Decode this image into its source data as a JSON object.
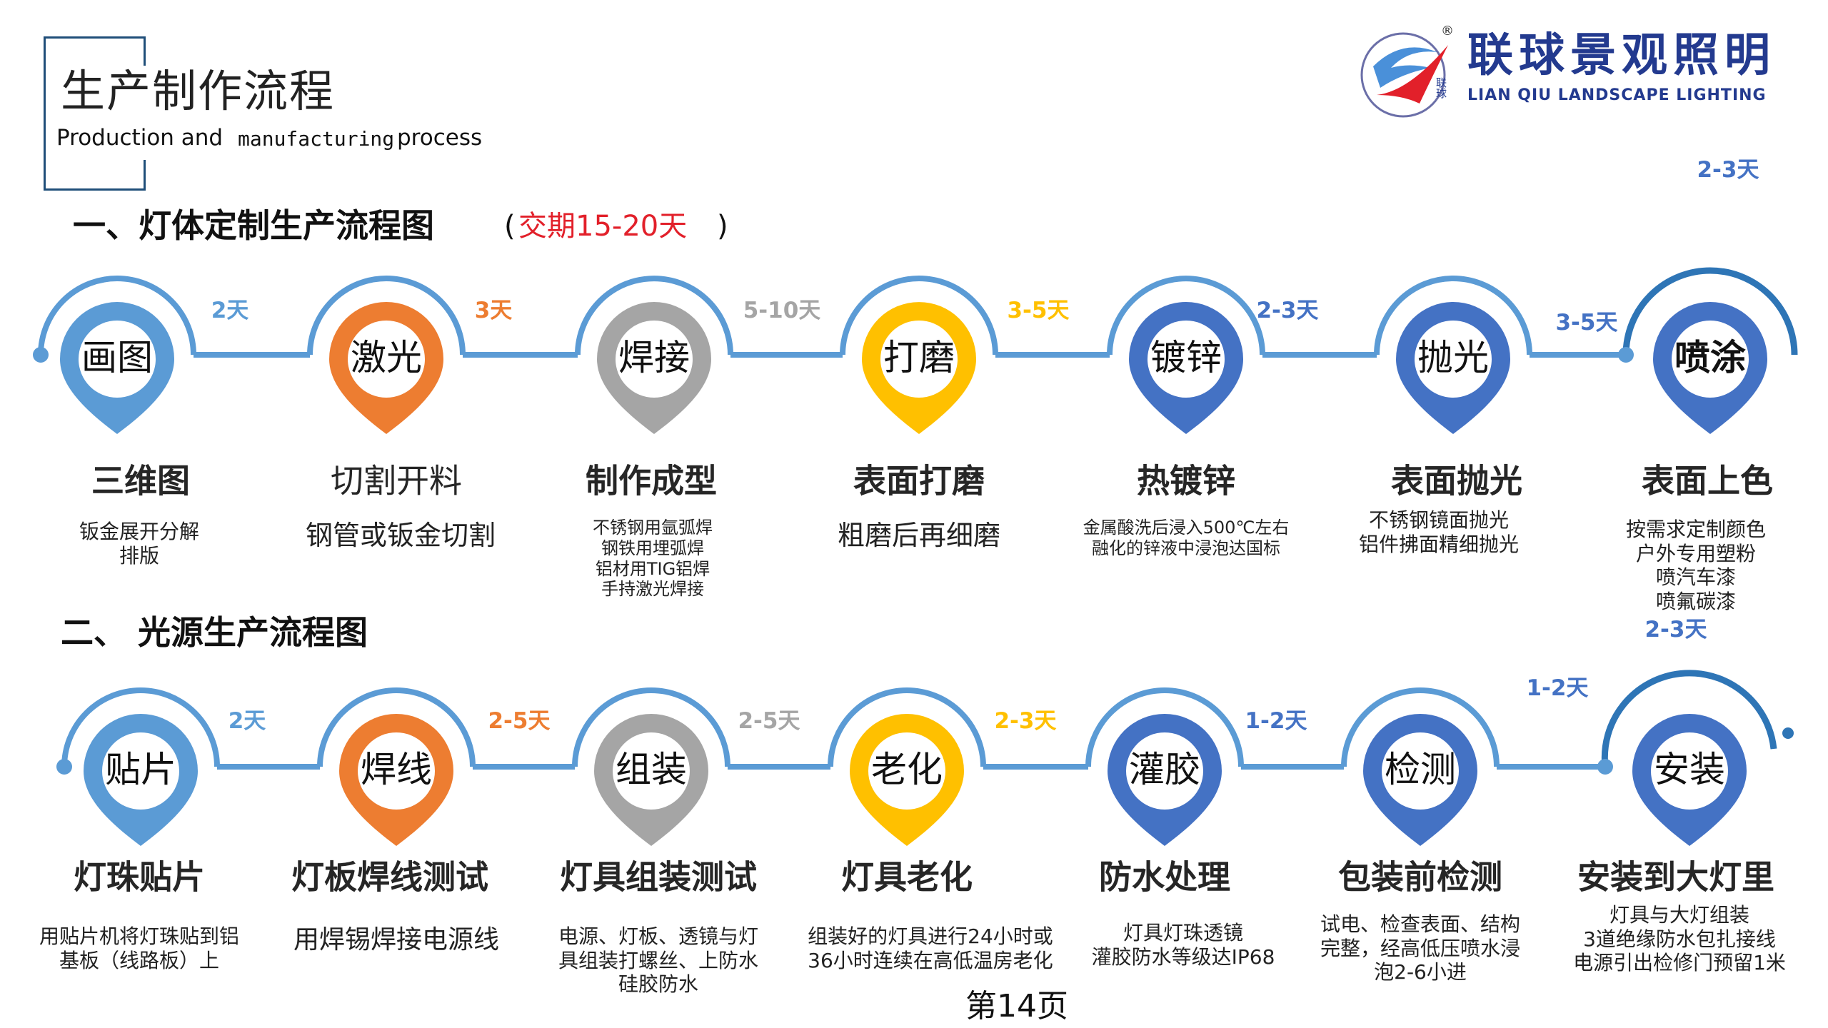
{
  "header": {
    "title": "生产制作流程",
    "subtitle_a": "Production and ",
    "subtitle_b": "manufacturing",
    "subtitle_c": " process"
  },
  "logo": {
    "name_cn": "联球景观照明",
    "name_en": "LIAN QIU LANDSCAPE LIGHTING",
    "small_cn": "联球",
    "registered": "®",
    "colors": {
      "blue": "#233a8f",
      "red": "#e2202a",
      "light_blue": "#4a90d9"
    }
  },
  "section1": {
    "title": "一、灯体定制生产流程图",
    "lead_open": "(",
    "lead_text": "交期15-20天",
    "lead_close": ")",
    "steps": [
      {
        "pin": "画图",
        "title": "三维图",
        "desc": [
          "钣金展开分解",
          "排版"
        ],
        "duration": "2天",
        "color": "#5b9bd5",
        "duration_color": "#5b9bd5"
      },
      {
        "pin": "激光",
        "title": "切割开料",
        "desc": [
          "钢管或钣金切割"
        ],
        "duration": "3天",
        "color": "#ed7d31",
        "duration_color": "#ed7d31"
      },
      {
        "pin": "焊接",
        "title": "制作成型",
        "desc": [
          "不锈钢用氩弧焊",
          "钢铁用埋弧焊",
          "铝材用TIG铝焊",
          "手持激光焊接"
        ],
        "duration": "5-10天",
        "color": "#a5a5a5",
        "duration_color": "#a5a5a5"
      },
      {
        "pin": "打磨",
        "title": "表面打磨",
        "desc": [
          "粗磨后再细磨"
        ],
        "duration": "3-5天",
        "color": "#ffc000",
        "duration_color": "#ffc000"
      },
      {
        "pin": "镀锌",
        "title": "热镀锌",
        "desc": [
          "金属酸洗后浸入500℃左右",
          "融化的锌液中浸泡达国标"
        ],
        "duration": "2-3天",
        "color": "#4472c4",
        "duration_color": "#4472c4"
      },
      {
        "pin": "抛光",
        "title": "表面抛光",
        "desc": [
          "不锈钢镜面抛光",
          "铝件拂面精细抛光"
        ],
        "duration": "3-5天",
        "color": "#4472c4",
        "duration_color": "#4472c4"
      },
      {
        "pin": "喷涂",
        "title": "表面上色",
        "desc": [
          "按需求定制颜色",
          "户外专用塑粉",
          "喷汽车漆",
          "喷氟碳漆"
        ],
        "duration": "2-3天",
        "color": "#4472c4",
        "duration_color": "#4472c4"
      }
    ]
  },
  "section2": {
    "title": "二、 光源生产流程图",
    "steps": [
      {
        "pin": "贴片",
        "title": "灯珠贴片",
        "desc": [
          "用贴片机将灯珠贴到铝",
          "基板（线路板）上"
        ],
        "duration": "2天",
        "color": "#5b9bd5",
        "duration_color": "#5b9bd5"
      },
      {
        "pin": "焊线",
        "title": "灯板焊线测试",
        "desc": [
          "用焊锡焊接电源线"
        ],
        "duration": "2-5天",
        "color": "#ed7d31",
        "duration_color": "#ed7d31"
      },
      {
        "pin": "组装",
        "title": "灯具组装测试",
        "desc": [
          "电源、灯板、透镜与灯",
          "具组装打螺丝、上防水",
          "硅胶防水"
        ],
        "duration": "2-5天",
        "color": "#a5a5a5",
        "duration_color": "#a5a5a5"
      },
      {
        "pin": "老化",
        "title": "灯具老化",
        "desc": [
          "组装好的灯具进行24小时或",
          "36小时连续在高低温房老化"
        ],
        "duration": "2-3天",
        "color": "#ffc000",
        "duration_color": "#ffc000"
      },
      {
        "pin": "灌胶",
        "title": "防水处理",
        "desc": [
          "灯具灯珠透镜",
          "灌胶防水等级达IP68"
        ],
        "duration": "1-2天",
        "color": "#4472c4",
        "duration_color": "#4472c4"
      },
      {
        "pin": "检测",
        "title": "包装前检测",
        "desc": [
          "试电、检查表面、结构",
          "完整，经高低压喷水浸",
          "泡2-6小进"
        ],
        "duration": "1-2天",
        "color": "#4472c4",
        "duration_color": "#4472c4"
      },
      {
        "pin": "安装",
        "title": "安装到大灯里",
        "desc": [
          "灯具与大灯组装",
          "3道绝缘防水包扎接线",
          "电源引出检修门预留1米"
        ],
        "duration": "2-3天",
        "color": "#4472c4",
        "duration_color": "#4472c4"
      }
    ]
  },
  "line_color": "#5b9bd5",
  "end_arc_color": "#2e75b6",
  "page_number": "第14页"
}
